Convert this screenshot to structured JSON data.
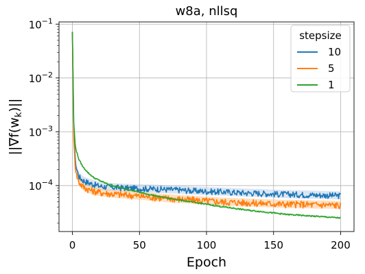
{
  "chart_data": {
    "type": "line",
    "title": "w8a, nllsq",
    "xlabel": "Epoch",
    "ylabel": "||∇f(w_k)||",
    "xlim": [
      -10,
      210
    ],
    "ylim": [
      1.4e-05,
      0.11
    ],
    "yscale": "log",
    "grid": true,
    "xticks": [
      {
        "value": 0,
        "label": "0"
      },
      {
        "value": 50,
        "label": "50"
      },
      {
        "value": 100,
        "label": "100"
      },
      {
        "value": 150,
        "label": "150"
      },
      {
        "value": 200,
        "label": "200"
      }
    ],
    "yticks": [
      {
        "value": 0.0001,
        "base": "10",
        "exp": "−4"
      },
      {
        "value": 0.001,
        "base": "10",
        "exp": "−3"
      },
      {
        "value": 0.01,
        "base": "10",
        "exp": "−2"
      },
      {
        "value": 0.1,
        "base": "10",
        "exp": "−1"
      }
    ],
    "legend": {
      "title": "stepsize",
      "position": "top-right"
    },
    "series": [
      {
        "name": "10",
        "color": "#1f77b4",
        "band_color": "#aec7e8",
        "x": [
          0,
          1,
          2,
          3,
          5,
          8,
          12,
          16,
          20,
          25,
          30,
          40,
          50,
          60,
          70,
          80,
          90,
          100,
          110,
          120,
          130,
          140,
          150,
          160,
          170,
          180,
          190,
          200
        ],
        "y": [
          0.072,
          0.0009,
          0.00032,
          0.00021,
          0.000145,
          0.000125,
          0.000113,
          0.000105,
          9.8e-05,
          9.5e-05,
          9.3e-05,
          9e-05,
          8.8e-05,
          8.7e-05,
          8.5e-05,
          8.3e-05,
          8e-05,
          7.8e-05,
          7.7e-05,
          7.5e-05,
          7.3e-05,
          7.2e-05,
          7e-05,
          6.9e-05,
          6.8e-05,
          6.7e-05,
          6.6e-05,
          6.5e-05
        ]
      },
      {
        "name": "5",
        "color": "#ff7f0e",
        "band_color": "#ffbb78",
        "x": [
          0,
          1,
          2,
          3,
          5,
          8,
          12,
          16,
          20,
          25,
          30,
          40,
          50,
          60,
          70,
          80,
          90,
          100,
          110,
          120,
          130,
          140,
          150,
          160,
          170,
          180,
          190,
          200
        ],
        "y": [
          0.072,
          0.0007,
          0.00025,
          0.00016,
          0.000115,
          9.5e-05,
          8.5e-05,
          7.9e-05,
          7.5e-05,
          7.2e-05,
          7e-05,
          6.7e-05,
          6.4e-05,
          6.1e-05,
          5.8e-05,
          5.6e-05,
          5.4e-05,
          5.2e-05,
          5e-05,
          4.9e-05,
          4.8e-05,
          4.7e-05,
          4.6e-05,
          4.5e-05,
          4.5e-05,
          4.4e-05,
          4.4e-05,
          4.3e-05
        ]
      },
      {
        "name": "1",
        "color": "#2ca02c",
        "band_color": "#98df8a",
        "x": [
          0,
          1,
          2,
          3,
          5,
          8,
          12,
          16,
          20,
          25,
          30,
          40,
          50,
          60,
          70,
          80,
          90,
          100,
          110,
          120,
          130,
          140,
          150,
          160,
          170,
          180,
          190,
          200
        ],
        "y": [
          0.072,
          0.0015,
          0.0006,
          0.00043,
          0.0003,
          0.00022,
          0.00017,
          0.00014,
          0.000125,
          0.00011,
          0.0001,
          8.7e-05,
          7.5e-05,
          6.6e-05,
          5.9e-05,
          5.4e-05,
          4.9e-05,
          4.5e-05,
          4.1e-05,
          3.8e-05,
          3.5e-05,
          3.3e-05,
          3.1e-05,
          2.9e-05,
          2.8e-05,
          2.7e-05,
          2.6e-05,
          2.5e-05
        ]
      }
    ]
  }
}
